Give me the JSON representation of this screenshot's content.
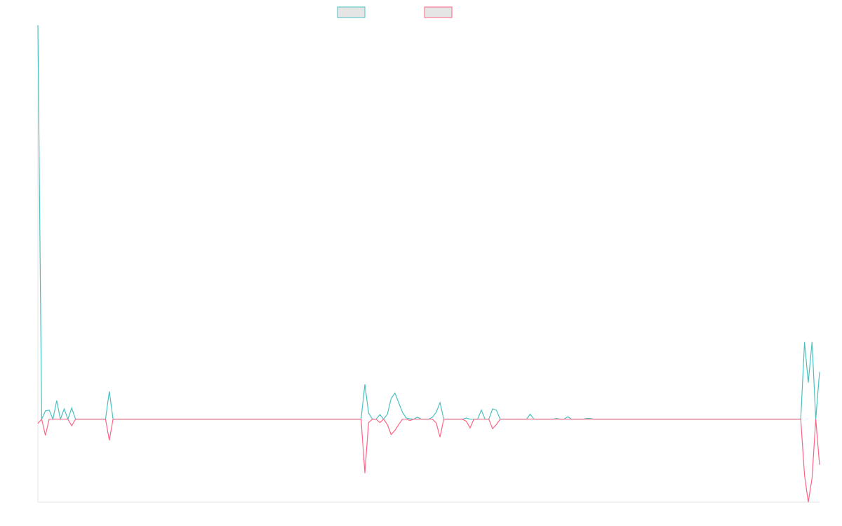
{
  "chart_data": {
    "type": "line",
    "title": "",
    "xlabel": "",
    "ylabel": "",
    "legend": {
      "placement": "top-center",
      "entries": [
        {
          "name": "",
          "color": "#4bc0c0",
          "fill": "#e5e5e5"
        },
        {
          "name": "",
          "color": "#ff6384",
          "fill": "#e5e5e5"
        }
      ]
    },
    "grid": false,
    "ylim": [
      -20,
      95
    ],
    "series": [
      {
        "name": "",
        "color": "#4bc0c0",
        "values": [
          95,
          0,
          2,
          2.2,
          0,
          4.5,
          0,
          2.5,
          0,
          2.7,
          0,
          0,
          0,
          0,
          0,
          0,
          0,
          0,
          0,
          6.7,
          0,
          0,
          0,
          0,
          0,
          0,
          0,
          0,
          0,
          0,
          0,
          0,
          0,
          0,
          0,
          0,
          0,
          0,
          0,
          0,
          0,
          0,
          0,
          0,
          0,
          0,
          0,
          0,
          0,
          0,
          0,
          0,
          0,
          0,
          0,
          0,
          0,
          0,
          0,
          0,
          0,
          0,
          0,
          0,
          0,
          0,
          0,
          0,
          0,
          0,
          0,
          0,
          0,
          0,
          0,
          0,
          0,
          0,
          0,
          0,
          0,
          0,
          0,
          0,
          0,
          0,
          0,
          8.4,
          1.5,
          0,
          0,
          1.1,
          0,
          1.2,
          5,
          6.3,
          4,
          1.7,
          0.3,
          0.1,
          0,
          0.5,
          0,
          0,
          0,
          0.5,
          1.7,
          4,
          0,
          0,
          0,
          0,
          0,
          0,
          0.3,
          0,
          0,
          0,
          2.2,
          0,
          0,
          2.5,
          2.2,
          0,
          0,
          0,
          0,
          0,
          0,
          0,
          0,
          1.2,
          0,
          0,
          0,
          0,
          0,
          0,
          0.2,
          0,
          0,
          0.6,
          0,
          0,
          0,
          0,
          0.2,
          0.2,
          0,
          0,
          0,
          0,
          0,
          0,
          0,
          0,
          0,
          0,
          0,
          0,
          0,
          0,
          0,
          0,
          0,
          0,
          0,
          0,
          0,
          0,
          0,
          0,
          0,
          0,
          0,
          0,
          0,
          0,
          0,
          0,
          0,
          0,
          0,
          0,
          0,
          0,
          0,
          0,
          0,
          0,
          0,
          0,
          0,
          0,
          0,
          0,
          0,
          0,
          0,
          0,
          0,
          0,
          0,
          0,
          18.6,
          8.8,
          18.6,
          0,
          11.4
        ]
      },
      {
        "name": "",
        "color": "#ff6384",
        "values": [
          -1,
          0,
          -3.9,
          0,
          0,
          0,
          0,
          0,
          0,
          -1.6,
          0,
          0,
          0,
          0,
          0,
          0,
          0,
          0,
          0,
          -5.1,
          0,
          0,
          0,
          0,
          0,
          0,
          0,
          0,
          0,
          0,
          0,
          0,
          0,
          0,
          0,
          0,
          0,
          0,
          0,
          0,
          0,
          0,
          0,
          0,
          0,
          0,
          0,
          0,
          0,
          0,
          0,
          0,
          0,
          0,
          0,
          0,
          0,
          0,
          0,
          0,
          0,
          0,
          0,
          0,
          0,
          0,
          0,
          0,
          0,
          0,
          0,
          0,
          0,
          0,
          0,
          0,
          0,
          0,
          0,
          0,
          0,
          0,
          0,
          0,
          0,
          0,
          0,
          -13,
          -0.8,
          0,
          0,
          -0.8,
          0,
          -1.3,
          -3.7,
          -2.7,
          -1.3,
          0,
          0,
          -0.3,
          0,
          0,
          0,
          0,
          0,
          0,
          -0.9,
          -4.3,
          0,
          0,
          0,
          0,
          0,
          0,
          -0.5,
          -2.1,
          0,
          0,
          0,
          0,
          0,
          -2.3,
          -1.3,
          0,
          0,
          0,
          0,
          0,
          0,
          0,
          0,
          0,
          0,
          0,
          0,
          0,
          0,
          0,
          0,
          0,
          0,
          0,
          0,
          0,
          0,
          0,
          0,
          0,
          0,
          0,
          0,
          0,
          0,
          0,
          0,
          0,
          0,
          0,
          0,
          0,
          0,
          0,
          0,
          0,
          0,
          0,
          0,
          0,
          0,
          0,
          0,
          0,
          0,
          0,
          0,
          0,
          0,
          0,
          0,
          0,
          0,
          0,
          0,
          0,
          0,
          0,
          0,
          0,
          0,
          0,
          0,
          0,
          0,
          0,
          0,
          0,
          0,
          0,
          0,
          0,
          0,
          0,
          0,
          0,
          -13.5,
          -20,
          -14.2,
          0,
          -11
        ]
      }
    ]
  }
}
